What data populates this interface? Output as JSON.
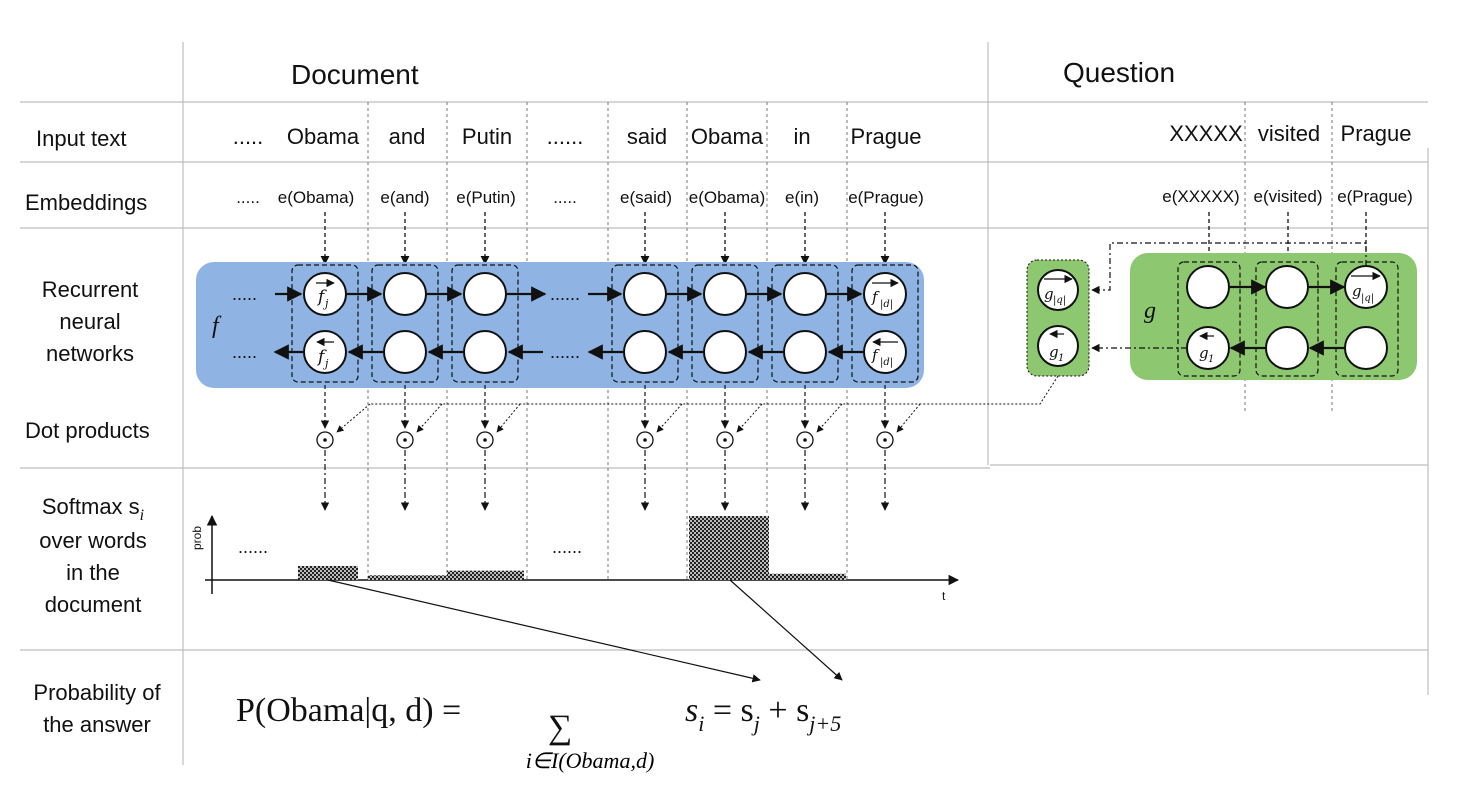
{
  "headers": {
    "document": "Document",
    "question": "Question"
  },
  "rows": {
    "input_text": "Input text",
    "embeddings": "Embeddings",
    "rnn": [
      "Recurrent",
      "neural",
      "networks"
    ],
    "dot": "Dot products",
    "softmax": [
      "Softmax s",
      "over words",
      "in the",
      "document"
    ],
    "softmax_sub": "i",
    "prob": [
      "Probability of",
      "the answer"
    ]
  },
  "doc_words": [
    ".....",
    "Obama",
    "and",
    "Putin",
    "......",
    "said",
    "Obama",
    "in",
    "Prague"
  ],
  "doc_emb": [
    ".....",
    "e(Obama)",
    "e(and)",
    "e(Putin)",
    ".....",
    "e(said)",
    "e(Obama)",
    "e(in)",
    "e(Prague)"
  ],
  "q_words": [
    "XXXXX",
    "visited",
    "Prague"
  ],
  "q_emb": [
    "e(XXXXX)",
    "e(visited)",
    "e(Prague)"
  ],
  "rnn_doc": {
    "name": "f",
    "ellipsis": ".....",
    "mid_ellipsis": "......"
  },
  "rnn_q": {
    "name": "g"
  },
  "softmax_axis": {
    "ylabel": "prob",
    "xlabel": "t",
    "ellipsis": "......"
  },
  "softmax_probs": [
    0.18,
    0.06,
    0.12,
    0.82,
    0.08
  ],
  "formula": {
    "lhs": "P(Obama|q, d) =",
    "sum_sub": "i∈I(Obama,d)",
    "rhs": "s",
    "colors": {
      "doc_box": "#8fb4e3",
      "q_box": "#8dc870"
    }
  },
  "colors": {
    "doc_rnn": "#8fb4e3",
    "q_rnn": "#8dc870"
  }
}
